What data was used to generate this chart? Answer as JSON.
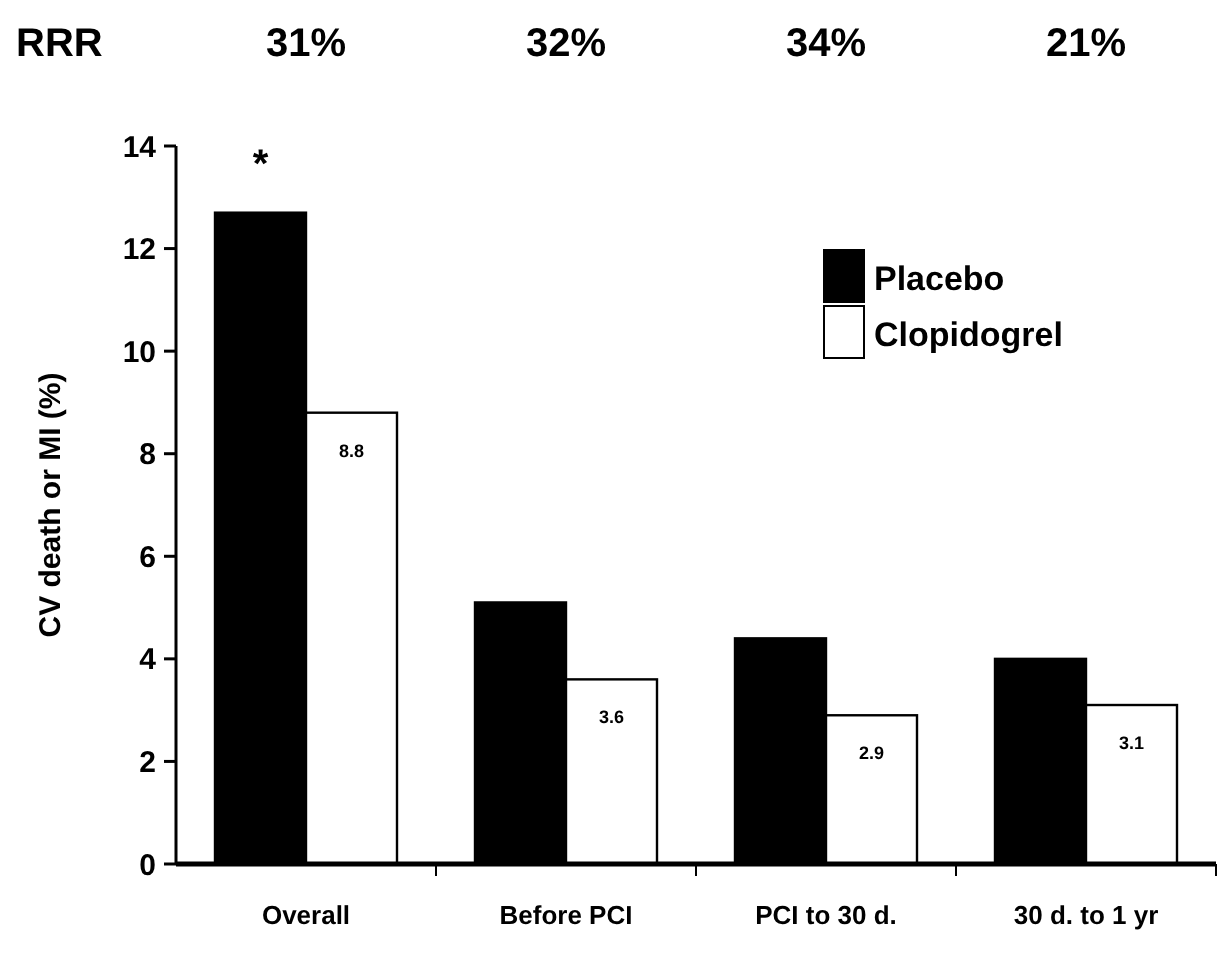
{
  "chart_data": {
    "type": "bar",
    "ylabel": "CV death or MI (%)",
    "categories": [
      "Overall",
      "Before PCI",
      "PCI to 30 d.",
      "30 d. to 1 yr"
    ],
    "series": [
      {
        "name": "Placebo",
        "color": "#000000",
        "values": [
          12.7,
          5.1,
          4.4,
          4.0
        ]
      },
      {
        "name": "Clopidogrel",
        "color": "#ffffff",
        "values": [
          8.8,
          3.6,
          2.9,
          3.1
        ],
        "value_labels": [
          "8.8",
          "3.6",
          "2.9",
          "3.1"
        ]
      }
    ],
    "ylim": [
      0,
      14
    ],
    "yticks": [
      0,
      2,
      4,
      6,
      8,
      10,
      12,
      14
    ],
    "grid": false,
    "legend": "top right",
    "annotations": [
      "RRR",
      "31%",
      "32%",
      "34%",
      "21%",
      {
        "text": "*",
        "x": "Overall",
        "y": 12.7
      }
    ]
  }
}
